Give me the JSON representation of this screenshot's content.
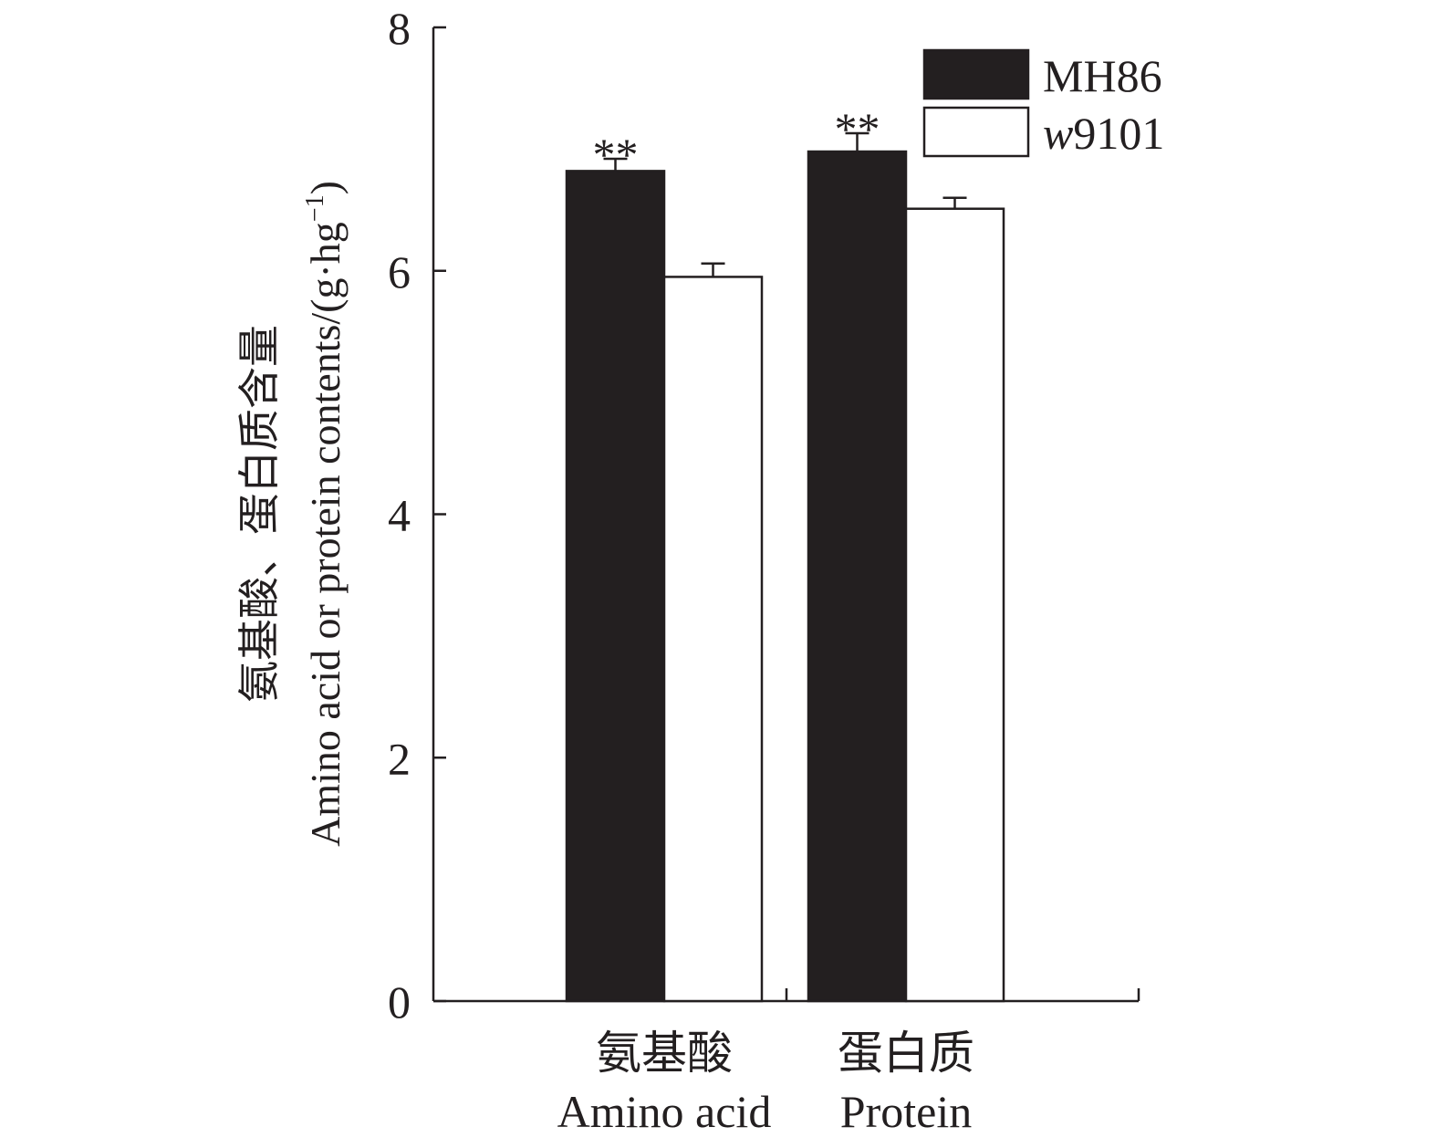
{
  "chart_data": {
    "type": "bar",
    "categories": [
      {
        "zh": "氨基酸",
        "en": "Amino acid"
      },
      {
        "zh": "蛋白质",
        "en": "Protein"
      }
    ],
    "series": [
      {
        "name": "MH86",
        "values": [
          6.82,
          6.98
        ],
        "errors": [
          0.1,
          0.15
        ],
        "annotations": [
          "**",
          "**"
        ],
        "color": "#231f20"
      },
      {
        "name": "w9101",
        "values": [
          5.95,
          6.51
        ],
        "errors": [
          0.11,
          0.09
        ],
        "annotations": [
          "",
          ""
        ],
        "color": "#ffffff"
      }
    ],
    "ylabel_zh": "氨基酸、蛋白质含量",
    "ylabel_en": "Amino acid or protein contents/(g·hg",
    "ylabel_sup": "−1",
    "ylabel_close": ")",
    "ylim": [
      0,
      8
    ],
    "yticks": [
      "0",
      "2",
      "4",
      "6",
      "8"
    ],
    "legend_position": "top-right",
    "grid": false
  }
}
